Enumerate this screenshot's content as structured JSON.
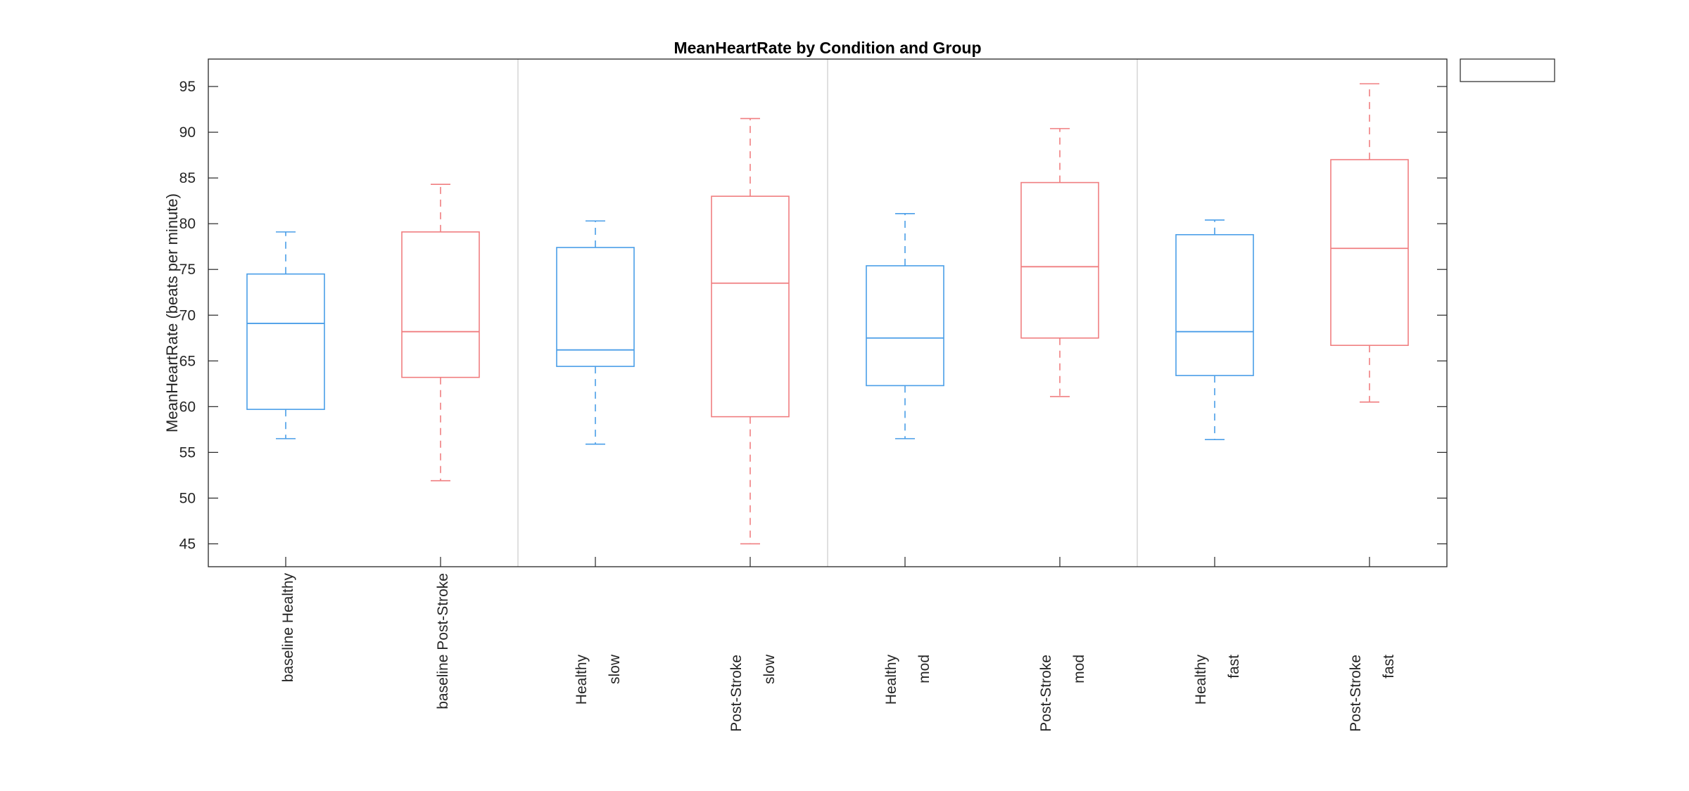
{
  "chart_data": {
    "type": "box",
    "title": "MeanHeartRate by Condition and Group",
    "xlabel": "",
    "ylabel": "MeanHeartRate (beats per minute)",
    "ylim": [
      42.5,
      98
    ],
    "yticks": [
      45,
      50,
      55,
      60,
      65,
      70,
      75,
      80,
      85,
      90,
      95
    ],
    "legend": {
      "position": "top-right",
      "entries": []
    },
    "colors": {
      "Healthy": "#4a9ee8",
      "Post-Stroke": "#f07e80",
      "separator": "#d0d0d0",
      "axis": "#262626"
    },
    "boxes": [
      {
        "label_line1": "baseline Healthy",
        "label_line2": "",
        "group": "Healthy",
        "whisker_low": 56.5,
        "q1": 59.7,
        "median": 69.1,
        "q3": 74.5,
        "whisker_high": 79.1
      },
      {
        "label_line1": "baseline Post-Stroke",
        "label_line2": "",
        "group": "Post-Stroke",
        "whisker_low": 51.9,
        "q1": 63.2,
        "median": 68.2,
        "q3": 79.1,
        "whisker_high": 84.3
      },
      {
        "label_line1": "Healthy",
        "label_line2": "slow",
        "group": "Healthy",
        "whisker_low": 55.9,
        "q1": 64.4,
        "median": 66.2,
        "q3": 77.4,
        "whisker_high": 80.3
      },
      {
        "label_line1": "Post-Stroke",
        "label_line2": "slow",
        "group": "Post-Stroke",
        "whisker_low": 45.0,
        "q1": 58.9,
        "median": 73.5,
        "q3": 83.0,
        "whisker_high": 91.5
      },
      {
        "label_line1": "Healthy",
        "label_line2": "mod",
        "group": "Healthy",
        "whisker_low": 56.5,
        "q1": 62.3,
        "median": 67.5,
        "q3": 75.4,
        "whisker_high": 81.1
      },
      {
        "label_line1": "Post-Stroke",
        "label_line2": "mod",
        "group": "Post-Stroke",
        "whisker_low": 61.1,
        "q1": 67.5,
        "median": 75.3,
        "q3": 84.5,
        "whisker_high": 90.4
      },
      {
        "label_line1": "Healthy",
        "label_line2": "fast",
        "group": "Healthy",
        "whisker_low": 56.4,
        "q1": 63.4,
        "median": 68.2,
        "q3": 78.8,
        "whisker_high": 80.4
      },
      {
        "label_line1": "Post-Stroke",
        "label_line2": "fast",
        "group": "Post-Stroke",
        "whisker_low": 60.5,
        "q1": 66.7,
        "median": 77.3,
        "q3": 87.0,
        "whisker_high": 95.3
      }
    ]
  }
}
